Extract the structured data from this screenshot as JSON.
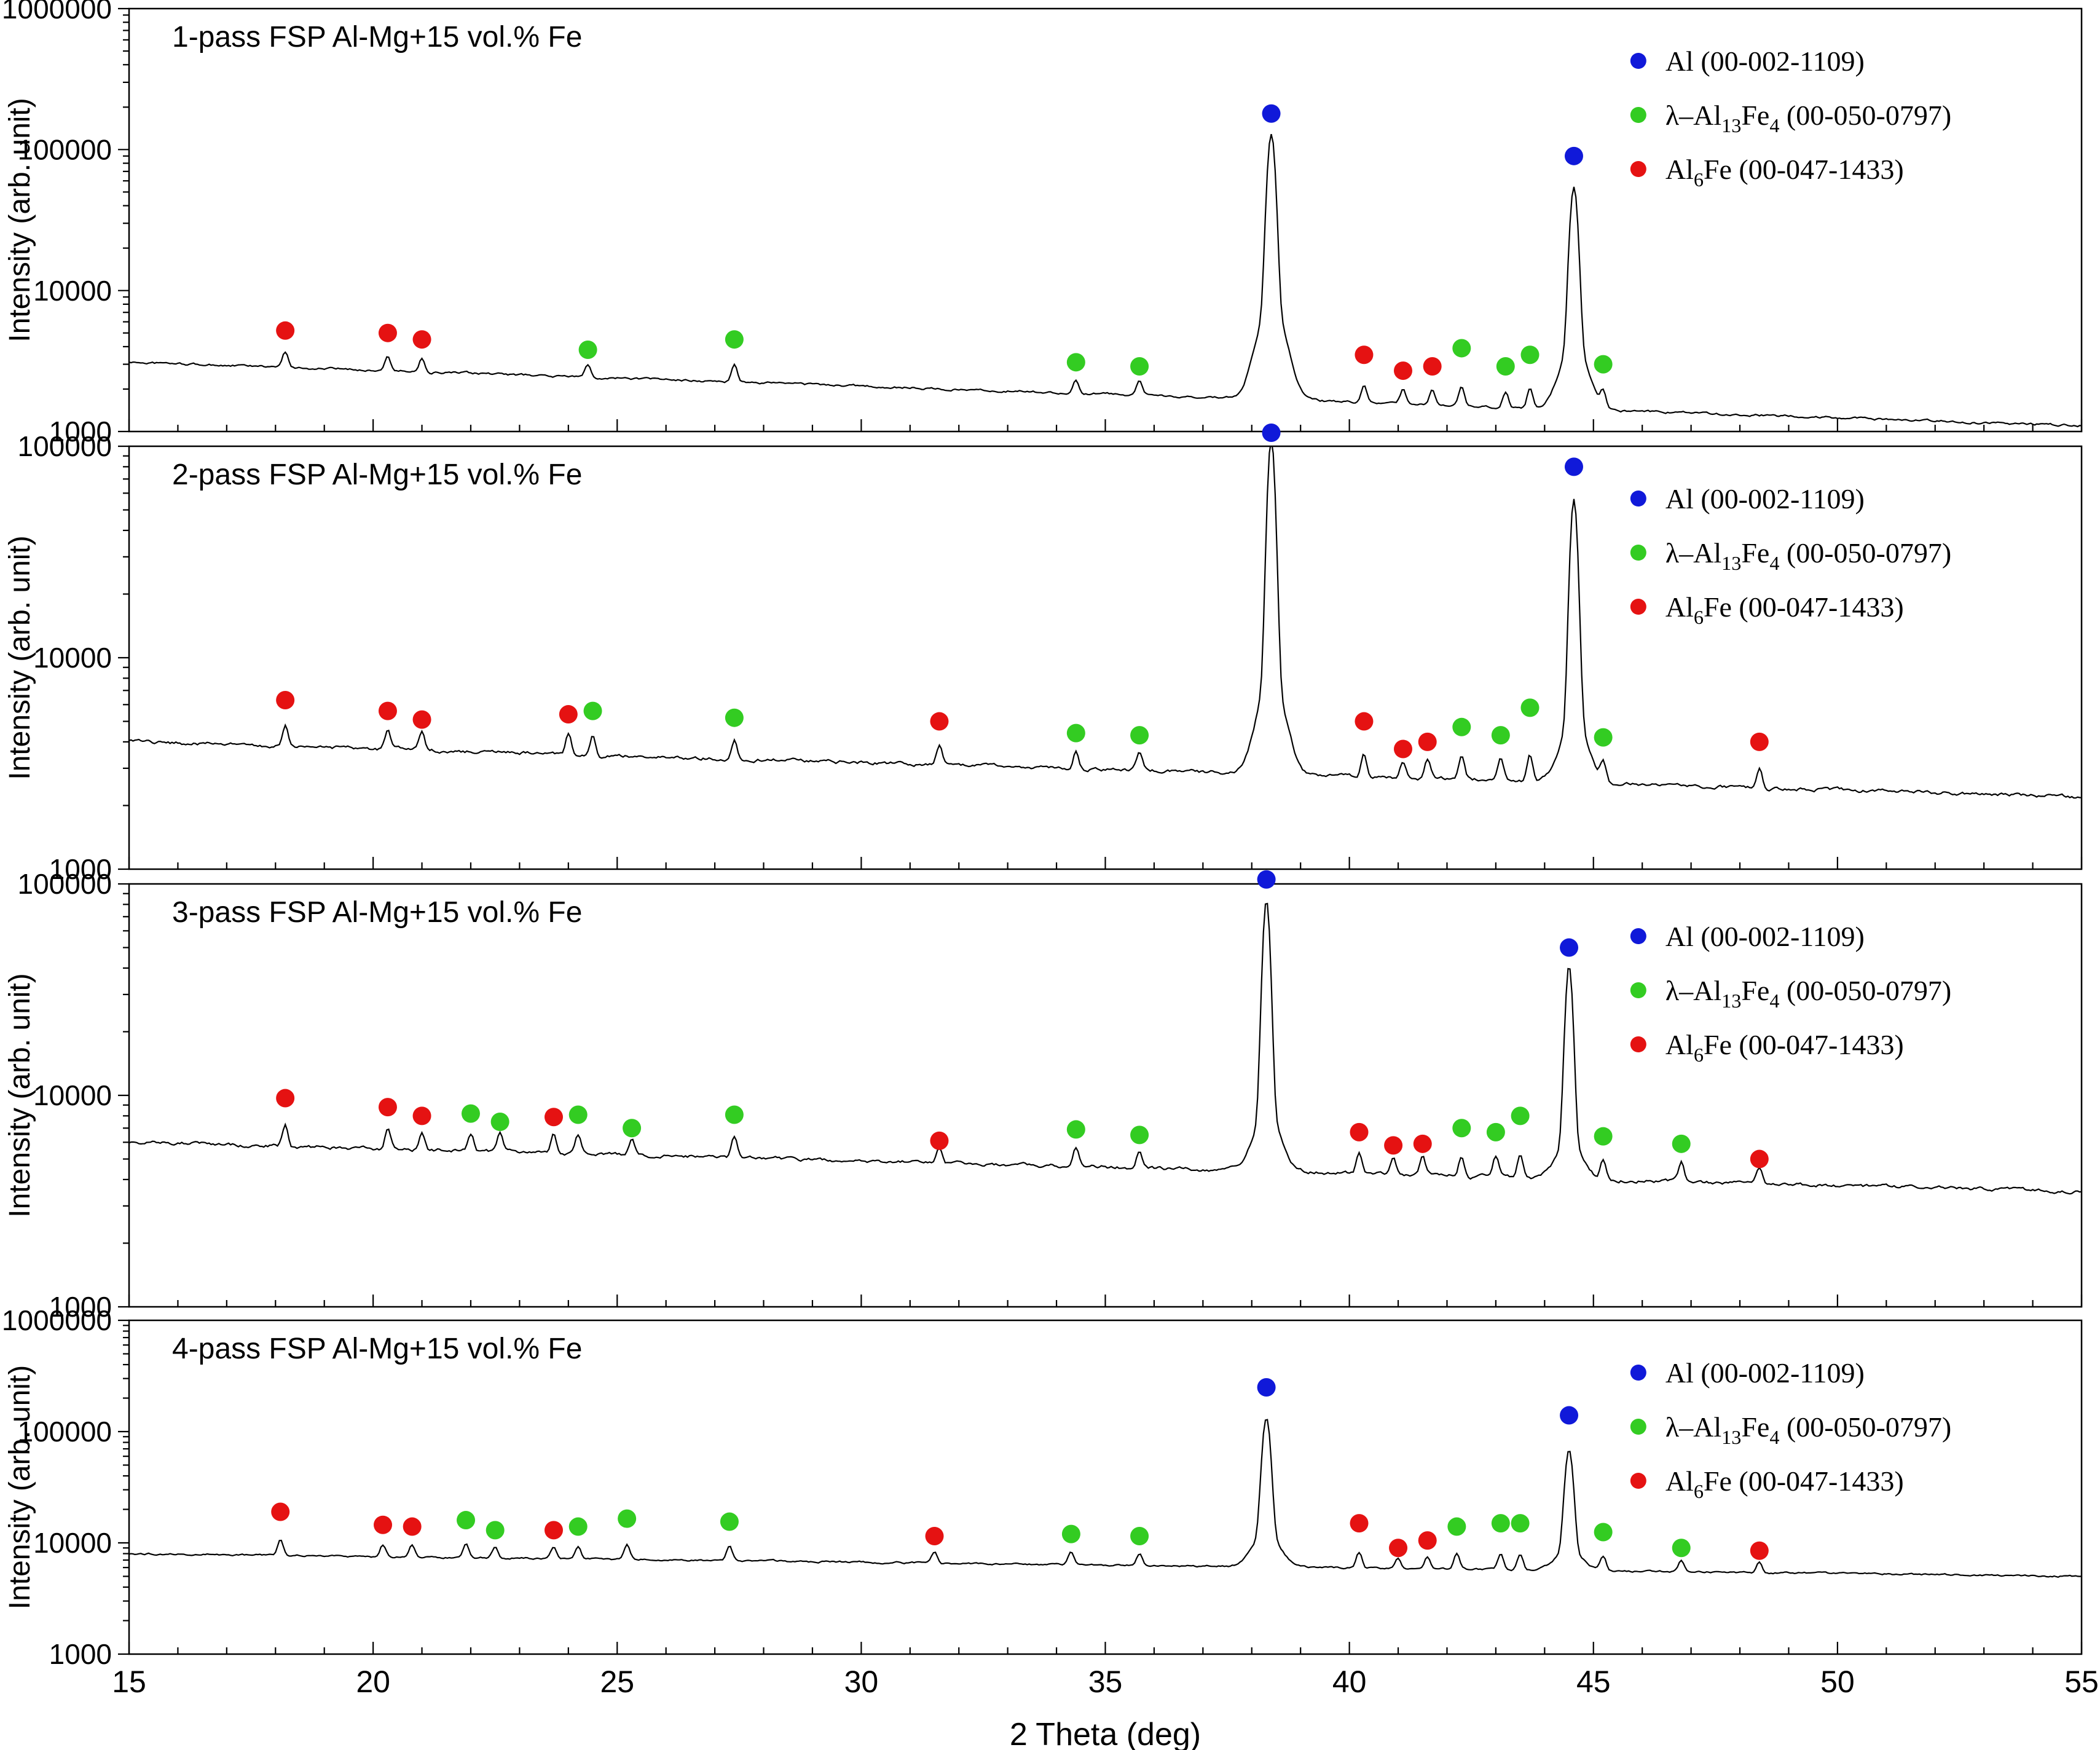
{
  "figure": {
    "xlabel": "2 Theta (deg)",
    "ylabel": "Intensity (arb. unit)",
    "x_min": 15,
    "x_max": 55,
    "x_major_ticks": [
      15,
      20,
      25,
      30,
      35,
      40,
      45,
      50,
      55
    ]
  },
  "colors": {
    "Al": "#1019d9",
    "Al13Fe4": "#33cc22",
    "Al6Fe": "#e51212",
    "line": "#000000"
  },
  "legend": {
    "entries": [
      {
        "key": "Al",
        "color": "#1019d9",
        "segments": [
          {
            "t": "Al (00-002-1109)"
          }
        ]
      },
      {
        "key": "Al13Fe4",
        "color": "#33cc22",
        "segments": [
          {
            "t": "λ–Al"
          },
          {
            "t": "13",
            "sub": true
          },
          {
            "t": "Fe"
          },
          {
            "t": "4",
            "sub": true
          },
          {
            "t": " (00-050-0797)"
          }
        ]
      },
      {
        "key": "Al6Fe",
        "color": "#e51212",
        "segments": [
          {
            "t": "Al"
          },
          {
            "t": "6",
            "sub": true
          },
          {
            "t": "Fe (00-047-1433)"
          }
        ]
      }
    ]
  },
  "chart_data": [
    {
      "type": "line",
      "title": "1-pass FSP Al-Mg+15 vol.% Fe",
      "xlabel": "2 Theta (deg)",
      "ylabel": "Intensity (arb. unit)",
      "xlim": [
        15,
        55
      ],
      "ylim": [
        1000,
        1000000
      ],
      "yticks": [
        1000,
        10000,
        100000,
        1000000
      ],
      "yscale": "log",
      "baseline": {
        "start": 3100,
        "end": 1100
      },
      "main_peaks": [
        {
          "x": 38.4,
          "y": 120000
        },
        {
          "x": 44.6,
          "y": 50000
        }
      ],
      "markers": {
        "Al": [
          {
            "x": 38.4,
            "y": 180000
          },
          {
            "x": 44.6,
            "y": 90000
          }
        ],
        "Al13Fe4": [
          {
            "x": 24.4,
            "y": 3800
          },
          {
            "x": 27.4,
            "y": 4500
          },
          {
            "x": 34.4,
            "y": 3100
          },
          {
            "x": 35.7,
            "y": 2900
          },
          {
            "x": 42.3,
            "y": 3900
          },
          {
            "x": 43.2,
            "y": 2900
          },
          {
            "x": 43.7,
            "y": 3500
          },
          {
            "x": 45.2,
            "y": 3000
          }
        ],
        "Al6Fe": [
          {
            "x": 18.2,
            "y": 5200
          },
          {
            "x": 20.3,
            "y": 5000
          },
          {
            "x": 21.0,
            "y": 4500
          },
          {
            "x": 40.3,
            "y": 3500
          },
          {
            "x": 41.1,
            "y": 2700
          },
          {
            "x": 41.7,
            "y": 2900
          }
        ]
      }
    },
    {
      "type": "line",
      "title": "2-pass FSP Al-Mg+15 vol.% Fe",
      "xlabel": "2 Theta (deg)",
      "ylabel": "Intensity (arb. unit)",
      "xlim": [
        15,
        55
      ],
      "ylim": [
        1000,
        100000
      ],
      "yticks": [
        1000,
        10000,
        100000
      ],
      "yscale": "log",
      "baseline": {
        "start": 4000,
        "end": 2200
      },
      "main_peaks": [
        {
          "x": 38.4,
          "y": 100000
        },
        {
          "x": 44.6,
          "y": 50000
        }
      ],
      "markers": {
        "Al": [
          {
            "x": 38.4,
            "y": 130000
          },
          {
            "x": 44.6,
            "y": 80000
          }
        ],
        "Al13Fe4": [
          {
            "x": 24.5,
            "y": 5600
          },
          {
            "x": 27.4,
            "y": 5200
          },
          {
            "x": 34.4,
            "y": 4400
          },
          {
            "x": 35.7,
            "y": 4300
          },
          {
            "x": 42.3,
            "y": 4700
          },
          {
            "x": 43.1,
            "y": 4300
          },
          {
            "x": 43.7,
            "y": 5800
          },
          {
            "x": 45.2,
            "y": 4200
          }
        ],
        "Al6Fe": [
          {
            "x": 18.2,
            "y": 6300
          },
          {
            "x": 20.3,
            "y": 5600
          },
          {
            "x": 21.0,
            "y": 5100
          },
          {
            "x": 24.0,
            "y": 5400
          },
          {
            "x": 31.6,
            "y": 5000
          },
          {
            "x": 40.3,
            "y": 5000
          },
          {
            "x": 41.1,
            "y": 3700
          },
          {
            "x": 41.6,
            "y": 4000
          },
          {
            "x": 48.4,
            "y": 4000
          }
        ]
      }
    },
    {
      "type": "line",
      "title": "3-pass FSP Al-Mg+15 vol.% Fe",
      "xlabel": "2 Theta (deg)",
      "ylabel": "Intensity (arb. unit)",
      "xlim": [
        15,
        55
      ],
      "ylim": [
        1000,
        100000
      ],
      "yticks": [
        1000,
        10000,
        100000
      ],
      "yscale": "log",
      "baseline": {
        "start": 6000,
        "end": 3500
      },
      "main_peaks": [
        {
          "x": 38.3,
          "y": 75000
        },
        {
          "x": 44.5,
          "y": 35000
        }
      ],
      "markers": {
        "Al": [
          {
            "x": 38.3,
            "y": 105000
          },
          {
            "x": 44.5,
            "y": 50000
          }
        ],
        "Al13Fe4": [
          {
            "x": 22.0,
            "y": 8200
          },
          {
            "x": 22.6,
            "y": 7500
          },
          {
            "x": 24.2,
            "y": 8100
          },
          {
            "x": 25.3,
            "y": 7000
          },
          {
            "x": 27.4,
            "y": 8100
          },
          {
            "x": 34.4,
            "y": 6900
          },
          {
            "x": 35.7,
            "y": 6500
          },
          {
            "x": 42.3,
            "y": 7000
          },
          {
            "x": 43.0,
            "y": 6700
          },
          {
            "x": 43.5,
            "y": 8000
          },
          {
            "x": 45.2,
            "y": 6400
          },
          {
            "x": 46.8,
            "y": 5900
          }
        ],
        "Al6Fe": [
          {
            "x": 18.2,
            "y": 9700
          },
          {
            "x": 20.3,
            "y": 8800
          },
          {
            "x": 21.0,
            "y": 8000
          },
          {
            "x": 23.7,
            "y": 7900
          },
          {
            "x": 31.6,
            "y": 6100
          },
          {
            "x": 40.2,
            "y": 6700
          },
          {
            "x": 40.9,
            "y": 5800
          },
          {
            "x": 41.5,
            "y": 5900
          },
          {
            "x": 48.4,
            "y": 5000
          }
        ]
      }
    },
    {
      "type": "line",
      "title": "4-pass FSP Al-Mg+15 vol.% Fe",
      "xlabel": "2 Theta (deg)",
      "ylabel": "Intensity (arb. unit)",
      "xlim": [
        15,
        55
      ],
      "ylim": [
        1000,
        1000000
      ],
      "yticks": [
        1000,
        10000,
        100000,
        1000000
      ],
      "yscale": "log",
      "baseline": {
        "start": 8000,
        "end": 5000
      },
      "main_peaks": [
        {
          "x": 38.3,
          "y": 120000
        },
        {
          "x": 44.5,
          "y": 60000
        }
      ],
      "markers": {
        "Al": [
          {
            "x": 38.3,
            "y": 250000
          },
          {
            "x": 44.5,
            "y": 140000
          }
        ],
        "Al13Fe4": [
          {
            "x": 21.9,
            "y": 16000
          },
          {
            "x": 22.5,
            "y": 13000
          },
          {
            "x": 24.2,
            "y": 14000
          },
          {
            "x": 25.2,
            "y": 16500
          },
          {
            "x": 27.3,
            "y": 15500
          },
          {
            "x": 34.3,
            "y": 12000
          },
          {
            "x": 35.7,
            "y": 11500
          },
          {
            "x": 42.2,
            "y": 14000
          },
          {
            "x": 43.1,
            "y": 15000
          },
          {
            "x": 43.5,
            "y": 15000
          },
          {
            "x": 45.2,
            "y": 12500
          },
          {
            "x": 46.8,
            "y": 9000
          }
        ],
        "Al6Fe": [
          {
            "x": 18.1,
            "y": 19000
          },
          {
            "x": 20.2,
            "y": 14500
          },
          {
            "x": 20.8,
            "y": 14000
          },
          {
            "x": 23.7,
            "y": 13000
          },
          {
            "x": 31.5,
            "y": 11500
          },
          {
            "x": 40.2,
            "y": 15000
          },
          {
            "x": 41.0,
            "y": 9000
          },
          {
            "x": 41.6,
            "y": 10500
          },
          {
            "x": 48.4,
            "y": 8500
          }
        ]
      }
    }
  ]
}
